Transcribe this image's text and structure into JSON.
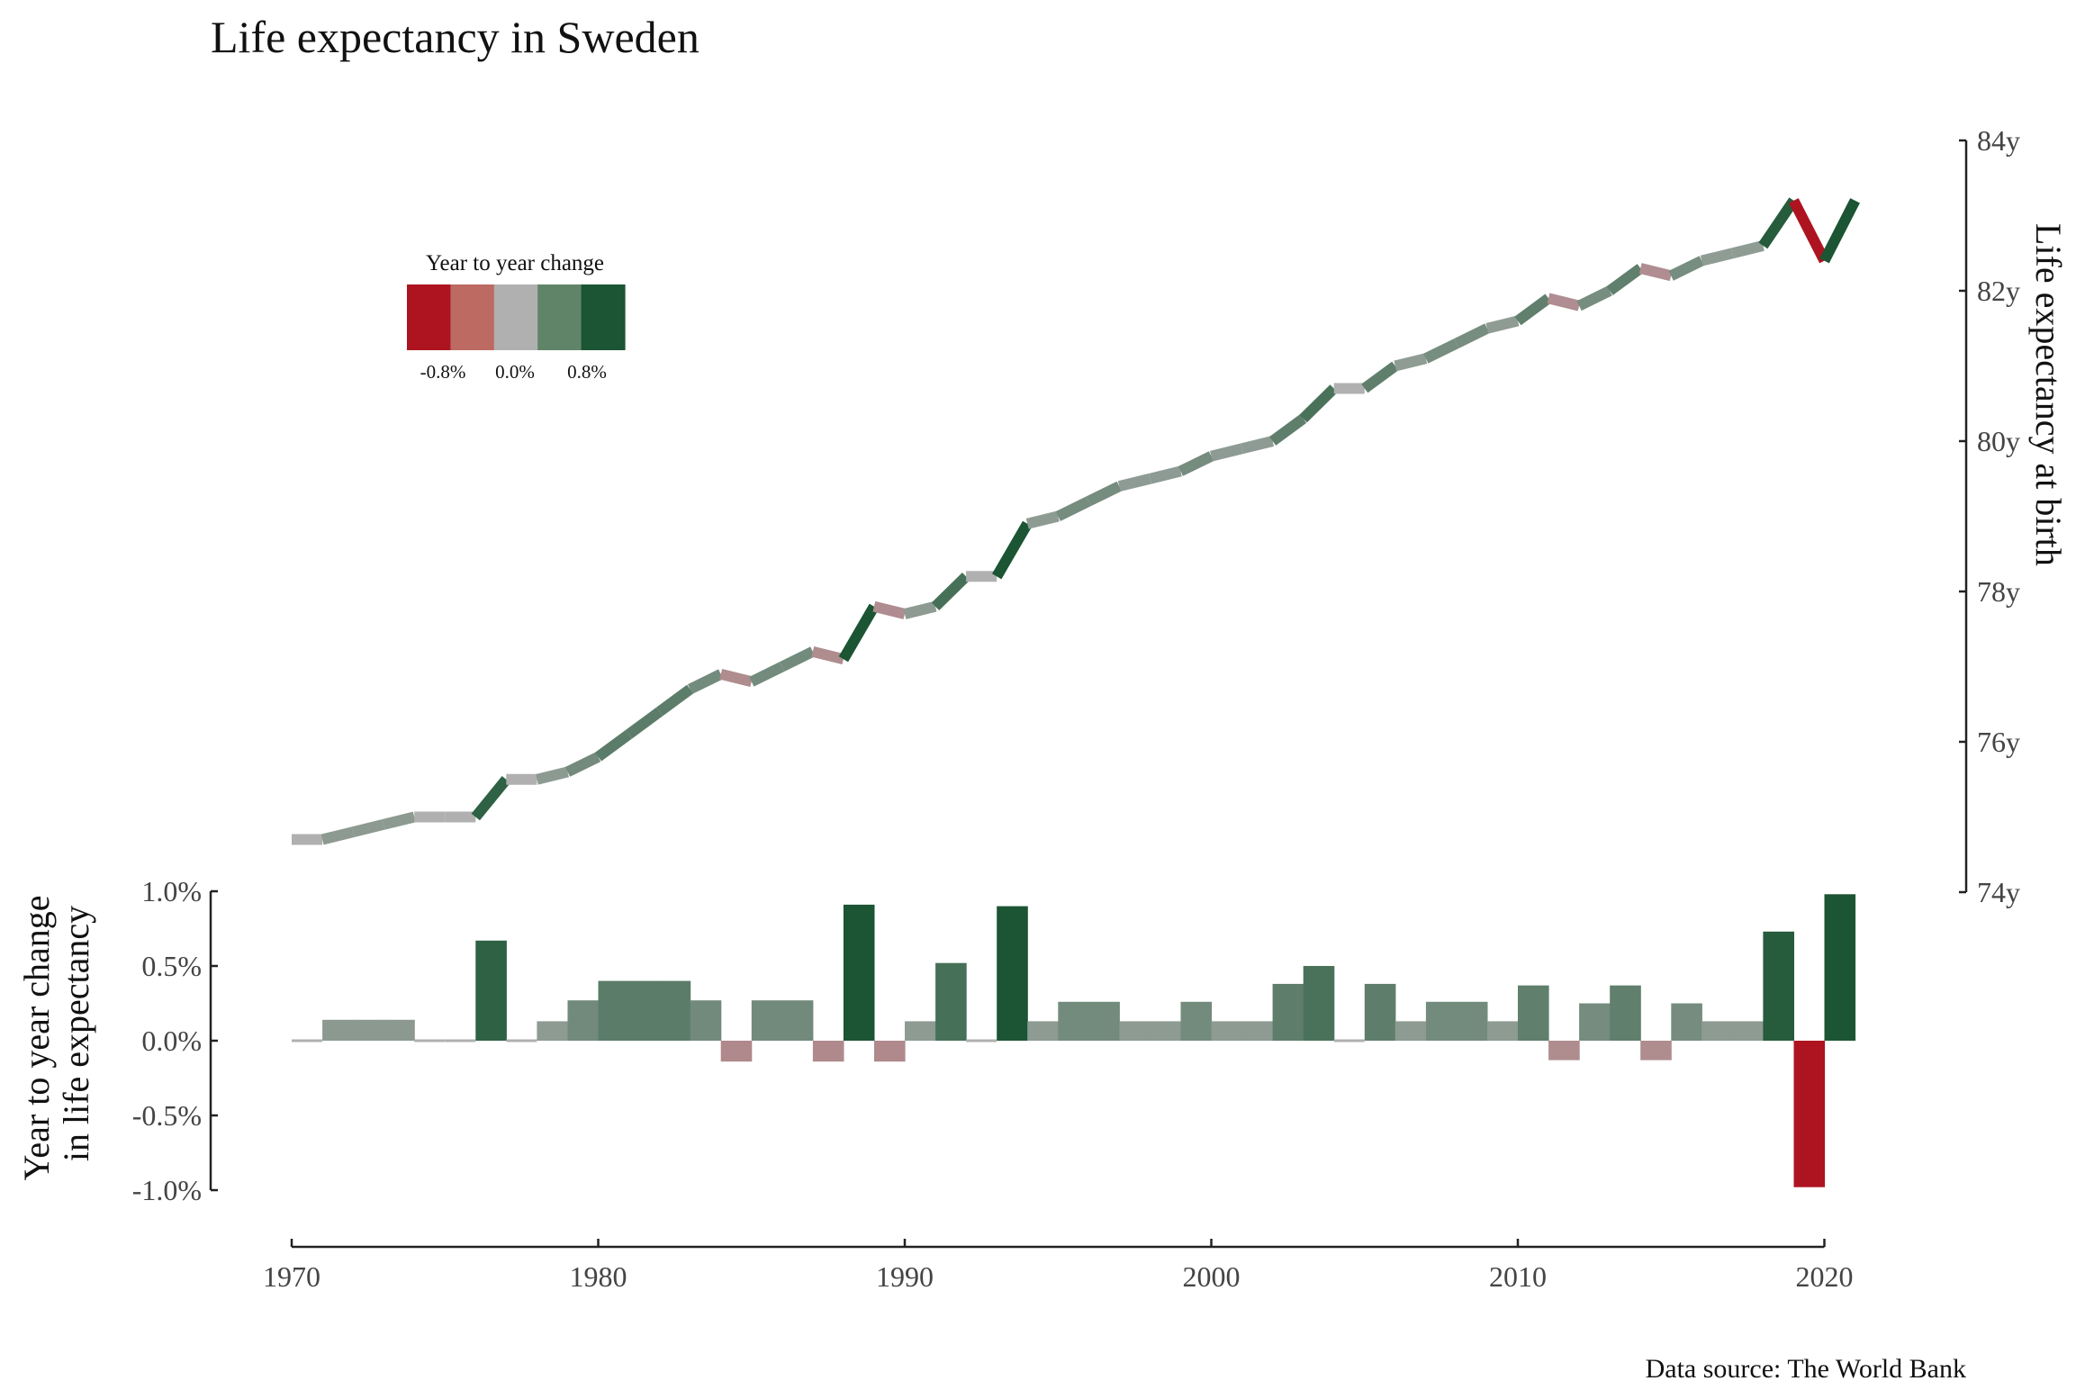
{
  "title": "Life expectancy in Sweden",
  "source": "Data source: The World Bank",
  "legend": {
    "title": "Year to year change",
    "labels": [
      "-0.8%",
      "0.0%",
      "0.8%"
    ],
    "colors": [
      "#ad1420",
      "#bd6a62",
      "#b0b0b0",
      "#608468",
      "#1b5533"
    ]
  },
  "colors": {
    "neg_strong": "#ad1420",
    "neutral": "#b0b0b0",
    "pos_strong": "#1b5533",
    "axis": "#222222"
  },
  "chart_data": [
    {
      "type": "line",
      "title": "Life expectancy in Sweden",
      "ylabel": "Life expectancy at birth",
      "ylim": [
        74,
        84
      ],
      "y_ticks": [
        "74y",
        "76y",
        "78y",
        "80y",
        "82y",
        "84y"
      ],
      "x": [
        1970,
        1971,
        1972,
        1973,
        1974,
        1975,
        1976,
        1977,
        1978,
        1979,
        1980,
        1981,
        1982,
        1983,
        1984,
        1985,
        1986,
        1987,
        1988,
        1989,
        1990,
        1991,
        1992,
        1993,
        1994,
        1995,
        1996,
        1997,
        1998,
        1999,
        2000,
        2001,
        2002,
        2003,
        2004,
        2005,
        2006,
        2007,
        2008,
        2009,
        2010,
        2011,
        2012,
        2013,
        2014,
        2015,
        2016,
        2017,
        2018,
        2019,
        2020,
        2021
      ],
      "values": [
        74.7,
        74.7,
        74.8,
        74.9,
        75.0,
        75.0,
        75.0,
        75.5,
        75.5,
        75.6,
        75.8,
        76.1,
        76.4,
        76.7,
        76.9,
        76.8,
        77.0,
        77.2,
        77.1,
        77.8,
        77.7,
        77.8,
        78.2,
        78.2,
        78.9,
        79.0,
        79.2,
        79.4,
        79.5,
        79.6,
        79.8,
        79.9,
        80.0,
        80.3,
        80.7,
        80.7,
        81.0,
        81.1,
        81.3,
        81.5,
        81.6,
        81.9,
        81.8,
        82.0,
        82.3,
        82.2,
        82.4,
        82.5,
        82.6,
        83.2,
        82.4,
        83.2
      ]
    },
    {
      "type": "bar",
      "ylabel": "Year to year change in life expectancy",
      "ylabel_lines": [
        "Year to year change",
        "in life expectancy"
      ],
      "ylim": [
        -1.0,
        1.0
      ],
      "y_ticks": [
        "-1.0%",
        "-0.5%",
        "0.0%",
        "0.5%",
        "1.0%"
      ],
      "x_ticks": [
        "1970",
        "1980",
        "1990",
        "2000",
        "2010",
        "2020"
      ],
      "x_range": [
        1970,
        2021
      ],
      "x": [
        1971,
        1972,
        1973,
        1974,
        1975,
        1976,
        1977,
        1978,
        1979,
        1980,
        1981,
        1982,
        1983,
        1984,
        1985,
        1986,
        1987,
        1988,
        1989,
        1990,
        1991,
        1992,
        1993,
        1994,
        1995,
        1996,
        1997,
        1998,
        1999,
        2000,
        2001,
        2002,
        2003,
        2004,
        2005,
        2006,
        2007,
        2008,
        2009,
        2010,
        2011,
        2012,
        2013,
        2014,
        2015,
        2016,
        2017,
        2018,
        2019,
        2020,
        2021
      ],
      "values": [
        0.0,
        0.14,
        0.14,
        0.14,
        0.0,
        0.0,
        0.67,
        0.0,
        0.13,
        0.27,
        0.4,
        0.4,
        0.4,
        0.27,
        -0.14,
        0.27,
        0.27,
        -0.14,
        0.91,
        -0.14,
        0.13,
        0.52,
        0.0,
        0.9,
        0.13,
        0.26,
        0.26,
        0.13,
        0.13,
        0.26,
        0.13,
        0.13,
        0.38,
        0.5,
        0.0,
        0.38,
        0.13,
        0.26,
        0.26,
        0.13,
        0.37,
        -0.13,
        0.25,
        0.37,
        -0.13,
        0.25,
        0.13,
        0.13,
        0.73,
        -0.98,
        0.98
      ]
    }
  ]
}
